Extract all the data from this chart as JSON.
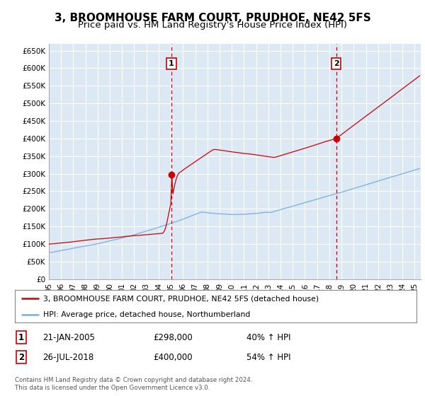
{
  "title": "3, BROOMHOUSE FARM COURT, PRUDHOE, NE42 5FS",
  "subtitle": "Price paid vs. HM Land Registry's House Price Index (HPI)",
  "title_fontsize": 11,
  "subtitle_fontsize": 9.5,
  "ylabel_ticks": [
    "£0",
    "£50K",
    "£100K",
    "£150K",
    "£200K",
    "£250K",
    "£300K",
    "£350K",
    "£400K",
    "£450K",
    "£500K",
    "£550K",
    "£600K",
    "£650K"
  ],
  "ytick_values": [
    0,
    50000,
    100000,
    150000,
    200000,
    250000,
    300000,
    350000,
    400000,
    450000,
    500000,
    550000,
    600000,
    650000
  ],
  "ylim": [
    0,
    670000
  ],
  "xlim_start": 1995.0,
  "xlim_end": 2025.5,
  "xtick_years": [
    1995,
    1996,
    1997,
    1998,
    1999,
    2000,
    2001,
    2002,
    2003,
    2004,
    2005,
    2006,
    2007,
    2008,
    2009,
    2010,
    2011,
    2012,
    2013,
    2014,
    2015,
    2016,
    2017,
    2018,
    2019,
    2020,
    2021,
    2022,
    2023,
    2024,
    2025
  ],
  "sale1_x": 2005.05,
  "sale1_y": 298000,
  "sale1_label": "1",
  "sale2_x": 2018.56,
  "sale2_y": 400000,
  "sale2_label": "2",
  "vline_color": "#cc0000",
  "vline_style": "--",
  "red_line_color": "#cc0000",
  "blue_line_color": "#7aaed6",
  "legend_red_label": "3, BROOMHOUSE FARM COURT, PRUDHOE, NE42 5FS (detached house)",
  "legend_blue_label": "HPI: Average price, detached house, Northumberland",
  "table_row1": [
    "1",
    "21-JAN-2005",
    "£298,000",
    "40% ↑ HPI"
  ],
  "table_row2": [
    "2",
    "26-JUL-2018",
    "£400,000",
    "54% ↑ HPI"
  ],
  "footnote": "Contains HM Land Registry data © Crown copyright and database right 2024.\nThis data is licensed under the Open Government Licence v3.0.",
  "bg_color": "#ffffff",
  "plot_bg_color": "#dce9f5",
  "grid_color": "#ffffff"
}
